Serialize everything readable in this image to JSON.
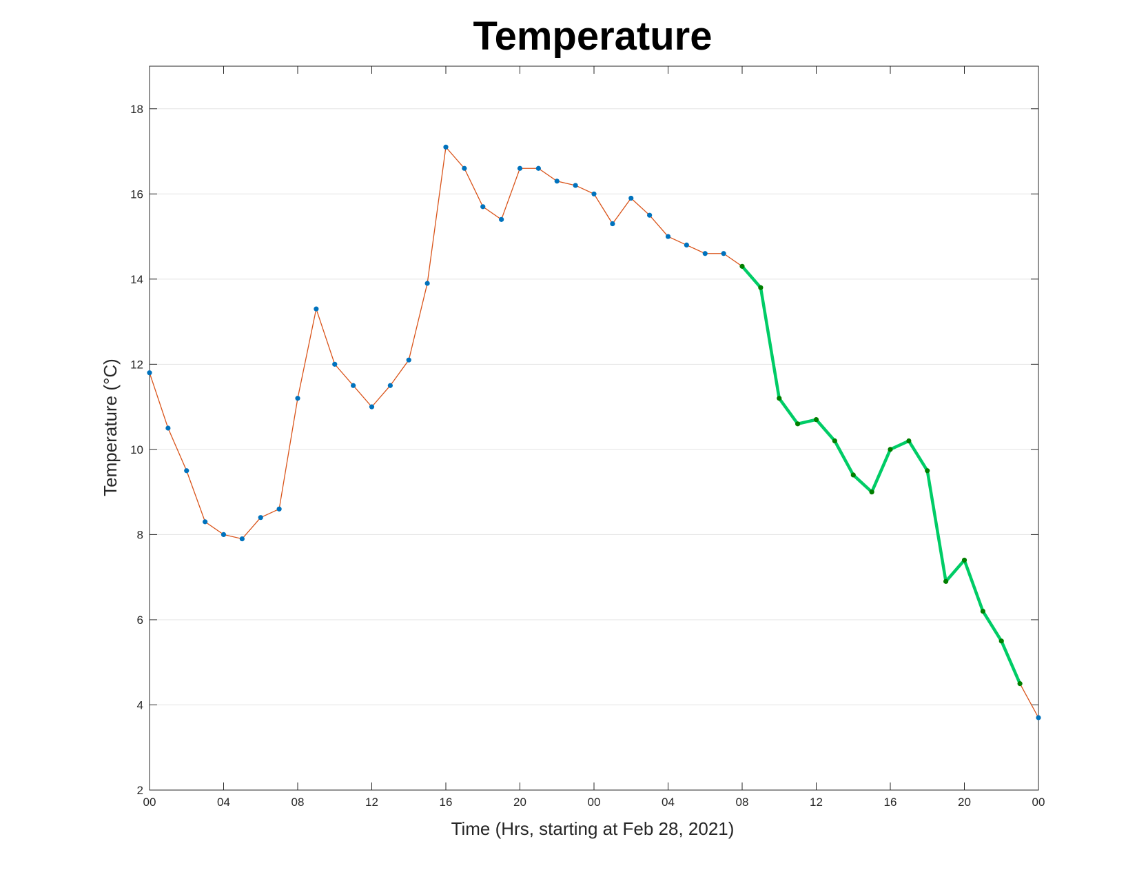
{
  "chart_data": {
    "type": "line",
    "title": "Temperature",
    "xlabel": "Time (Hrs, starting at Feb 28, 2021)",
    "ylabel": "Temperature (°C)",
    "ylim": [
      2,
      19
    ],
    "xlim": [
      0,
      48
    ],
    "x_unit": "hours",
    "yticks": [
      2,
      4,
      6,
      8,
      10,
      12,
      14,
      16,
      18
    ],
    "xticks": [
      0,
      4,
      8,
      12,
      16,
      20,
      24,
      28,
      32,
      36,
      40,
      44,
      48
    ],
    "xtick_labels": [
      "00",
      "04",
      "08",
      "12",
      "16",
      "20",
      "00",
      "04",
      "08",
      "12",
      "16",
      "20",
      "00"
    ],
    "grid": "horizontal",
    "x": [
      0,
      1,
      2,
      3,
      4,
      5,
      6,
      7,
      8,
      9,
      10,
      11,
      12,
      13,
      14,
      15,
      16,
      17,
      18,
      19,
      20,
      21,
      22,
      23,
      24,
      25,
      26,
      27,
      28,
      29,
      30,
      31,
      32,
      33,
      34,
      35,
      36,
      37,
      38,
      39,
      40,
      41,
      42,
      43,
      44,
      45,
      46,
      47,
      48
    ],
    "series": [
      {
        "values": [
          11.8,
          10.5,
          9.5,
          8.3,
          8.0,
          7.9,
          8.4,
          8.6,
          11.2,
          13.3,
          12.0,
          11.5,
          11.0,
          11.5,
          12.1,
          13.9,
          17.1,
          16.6,
          15.7,
          15.4,
          16.6,
          16.6,
          16.3,
          16.2,
          16.0,
          15.3,
          15.9,
          15.5,
          15.0,
          14.8,
          14.6,
          14.6,
          14.3,
          13.8,
          11.2,
          10.6,
          10.7,
          10.2,
          9.4,
          9.0,
          10.0,
          10.2,
          9.5,
          6.9,
          7.4,
          6.2,
          5.5,
          4.5,
          3.7
        ],
        "line_color": "#D95319",
        "marker_color": "#0072BD"
      }
    ],
    "highlight": {
      "x_start": 32,
      "x_end": 47,
      "line_color": "#00CC66",
      "marker_color": "#007F00"
    }
  }
}
